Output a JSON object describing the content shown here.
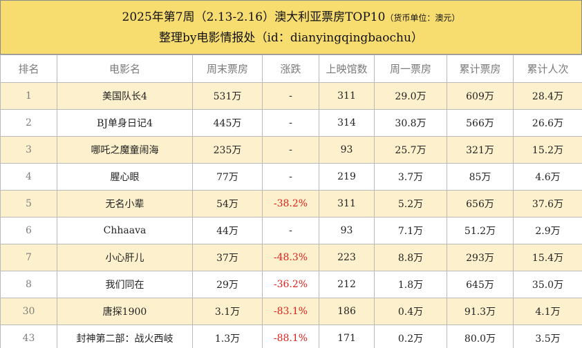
{
  "header": {
    "title_main": "2025年第7周（2.13-2.16）澳大利亚票房TOP10",
    "title_note": "（货币单位：澳元）",
    "subtitle": "整理by电影情报处（id：dianyingqingbaochu）"
  },
  "colors": {
    "header_bg": "#f7dc70",
    "odd_row_bg": "#fdf1cd",
    "even_row_bg": "#ffffff",
    "negative_change": "#e0201b",
    "border": "#b9b9b9"
  },
  "table": {
    "columns": [
      "排名",
      "电影名",
      "周末票房",
      "涨跌",
      "上映馆数",
      "周一票房",
      "累计票房",
      "累计人次"
    ],
    "rows": [
      {
        "rank": "1",
        "name": "美国队长4",
        "weekend": "531万",
        "change": "-",
        "theaters": "311",
        "monday": "29.0万",
        "total": "609万",
        "admissions": "28.4万"
      },
      {
        "rank": "2",
        "name": "BJ单身日记4",
        "weekend": "445万",
        "change": "-",
        "theaters": "314",
        "monday": "30.8万",
        "total": "566万",
        "admissions": "26.6万"
      },
      {
        "rank": "3",
        "name": "哪吒之魔童闹海",
        "weekend": "235万",
        "change": "-",
        "theaters": "93",
        "monday": "25.7万",
        "total": "321万",
        "admissions": "15.2万"
      },
      {
        "rank": "4",
        "name": "腥心眼",
        "weekend": "77万",
        "change": "-",
        "theaters": "219",
        "monday": "3.7万",
        "total": "85万",
        "admissions": "4.6万"
      },
      {
        "rank": "5",
        "name": "无名小辈",
        "weekend": "54万",
        "change": "-38.2%",
        "theaters": "311",
        "monday": "5.2万",
        "total": "656万",
        "admissions": "37.6万"
      },
      {
        "rank": "6",
        "name": "Chhaava",
        "weekend": "44万",
        "change": "-",
        "theaters": "93",
        "monday": "7.1万",
        "total": "51.2万",
        "admissions": "2.9万"
      },
      {
        "rank": "7",
        "name": "小心肝儿",
        "weekend": "37万",
        "change": "-48.3%",
        "theaters": "223",
        "monday": "8.8万",
        "total": "293万",
        "admissions": "15.4万"
      },
      {
        "rank": "8",
        "name": "我们同在",
        "weekend": "29万",
        "change": "-36.2%",
        "theaters": "212",
        "monday": "1.8万",
        "total": "645万",
        "admissions": "35.0万"
      },
      {
        "rank": "30",
        "name": "唐探1900",
        "weekend": "3.1万",
        "change": "-83.1%",
        "theaters": "186",
        "monday": "0.4万",
        "total": "91.3万",
        "admissions": "4.1万"
      },
      {
        "rank": "43",
        "name": "封神第二部：战火西岐",
        "weekend": "1.3万",
        "change": "-88.1%",
        "theaters": "171",
        "monday": "0.2万",
        "total": "80.0万",
        "admissions": "3.5万"
      }
    ]
  }
}
